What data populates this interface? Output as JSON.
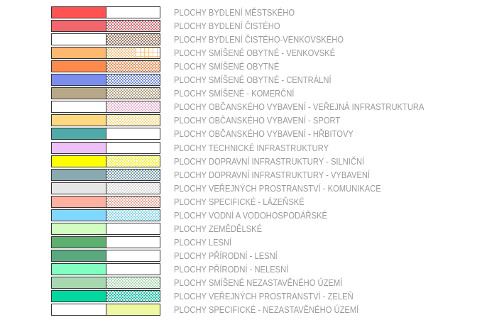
{
  "legend": [
    {
      "label": "PLOCHY BYDLENÍ MĚSTSKÉHO",
      "fill": "#ff5252",
      "pattern": null
    },
    {
      "label": "PLOCHY BYDLENÍ ČISTÉHO",
      "fill": "#f2666d",
      "pattern": "#e06a72"
    },
    {
      "label": "PLOCHY BYDLENÍ ČISTÉHO-VENKOVSKÉHO",
      "fill": "#ffffff",
      "pattern": "#9c7a64"
    },
    {
      "label": "PLOCHY SMÍŠENÉ OBYTNÉ - VENKOVSKÉ",
      "fill": "#ffb870",
      "pattern": "#ffc488",
      "grid": true
    },
    {
      "label": "PLOCHY SMÍŠENÉ OBYTNÉ",
      "fill": "#ff8a4c",
      "pattern": "#f58f58"
    },
    {
      "label": "PLOCHY SMÍŠENÉ OBYTNÉ - CENTRÁLNÍ",
      "fill": "#7b8ef0",
      "pattern": "#7088e6"
    },
    {
      "label": "PLOCHY SMÍŠENÉ - KOMERČNÍ",
      "fill": "#b8a88a",
      "pattern": "#b0a080"
    },
    {
      "label": "PLOCHY OBČANSKÉHO VYBAVENÍ - VEŘEJNÁ INFRASTRUKTURA",
      "fill": "#ffffff",
      "pattern": "#f0b8d0"
    },
    {
      "label": "PLOCHY OBČANSKÉHO VYBAVENÍ - SPORT",
      "fill": "#ffd880",
      "pattern": "#f6dc8c"
    },
    {
      "label": "PLOCHY OBČANSKÉHO VYBAVENÍ - HŘBITOVY",
      "fill": "#50aaa8",
      "pattern": null
    },
    {
      "label": "PLOCHY TECHNICKÉ INFRASTRUKTURY",
      "fill": "#eec0f8",
      "pattern": null
    },
    {
      "label": "PLOCHY DOPRAVNÍ INFRASTRUKTURY - SILNIČNÍ",
      "fill": "#ffff00",
      "pattern": "#f4f440"
    },
    {
      "label": "PLOCHY DOPRAVNÍ INFRASTRUKTURY - VYBAVENÍ",
      "fill": "#88aab0",
      "pattern": "#7aa0b0"
    },
    {
      "label": "PLOCHY VEŘEJNÝCH PROSTRANSTVÍ - KOMUNIKACE",
      "fill": "#e6e6e6",
      "pattern": "#d8d8d8"
    },
    {
      "label": "PLOCHY SPECIFICKÉ - LÁZEŇSKÉ",
      "fill": "#ffb0a0",
      "pattern": "#f4a898"
    },
    {
      "label": "PLOCHY VODNÍ A VODOHOSPODÁŘSKÉ",
      "fill": "#80d8ff",
      "pattern": "#88d8f0"
    },
    {
      "label": "PLOCHY ZEMĚDĚLSKÉ",
      "fill": "#d2fcc0",
      "pattern": null
    },
    {
      "label": "PLOCHY LESNÍ",
      "fill": "#5eb070",
      "pattern": null
    },
    {
      "label": "PLOCHY PŘÍRODNÍ - LESNÍ",
      "fill": "#5aa880",
      "pattern": null
    },
    {
      "label": "PLOCHY PŘÍRODNÍ - NELESNÍ",
      "fill": "#80ffc0",
      "pattern": null
    },
    {
      "label": "PLOCHY SMÍŠENÉ NEZASTAVĚNÉHO ÚZEMÍ",
      "fill": "#a8d8b0",
      "pattern": "#b0dcb8"
    },
    {
      "label": "PLOCHY VEŘEJNÝCH PROSTRANSTVÍ - ZELEŇ",
      "fill": "#00d8a0",
      "pattern": "#10c8a0"
    },
    {
      "label": "PLOCHY SPECIFICKÉ - NEZASTAVĚNÉHO ÚZEMÍ",
      "fill": "#ffffff",
      "pattern": "#eef8a0",
      "solid": true
    }
  ]
}
